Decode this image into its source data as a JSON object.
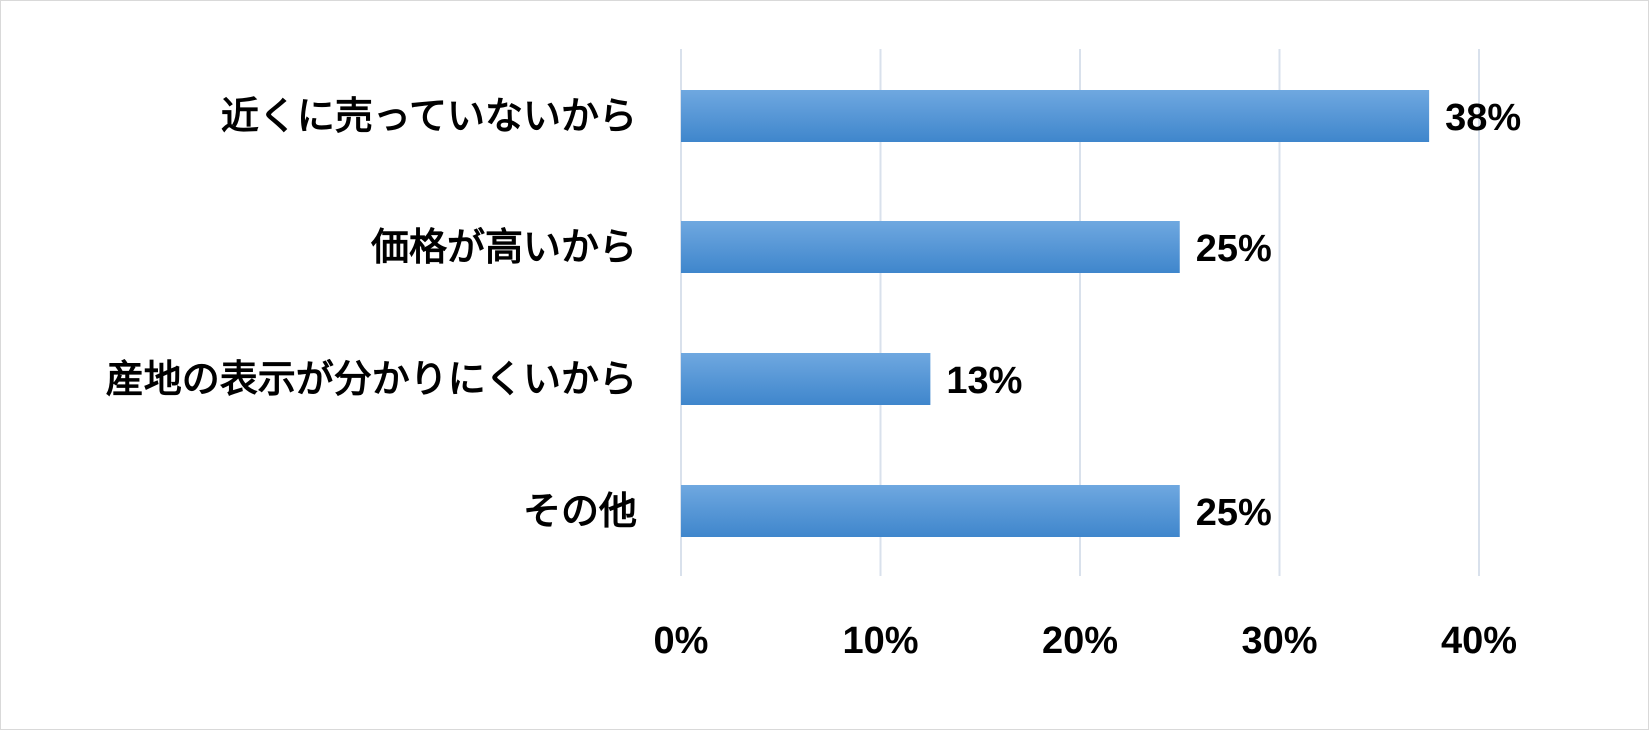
{
  "chart_data": {
    "type": "bar",
    "orientation": "horizontal",
    "categories": [
      "近くに売っていないから",
      "価格が高いから",
      "産地の表示が分かりにくいから",
      "その他"
    ],
    "values": [
      37.5,
      25,
      12.5,
      25
    ],
    "value_labels": [
      "38%",
      "25%",
      "13%",
      "25%"
    ],
    "xlim": [
      0,
      40
    ],
    "x_ticks": [
      0,
      10,
      20,
      30,
      40
    ],
    "x_tick_labels": [
      "0%",
      "10%",
      "20%",
      "30%",
      "40%"
    ],
    "title": "",
    "xlabel": "",
    "ylabel": "",
    "grid": "vertical",
    "legend": "none",
    "colors": {
      "bar_top": "#6fa8e0",
      "bar_bottom": "#3f86cc",
      "gridline": "#d9e1ec",
      "frame": "#d9d9d9",
      "text": "#000000"
    }
  }
}
